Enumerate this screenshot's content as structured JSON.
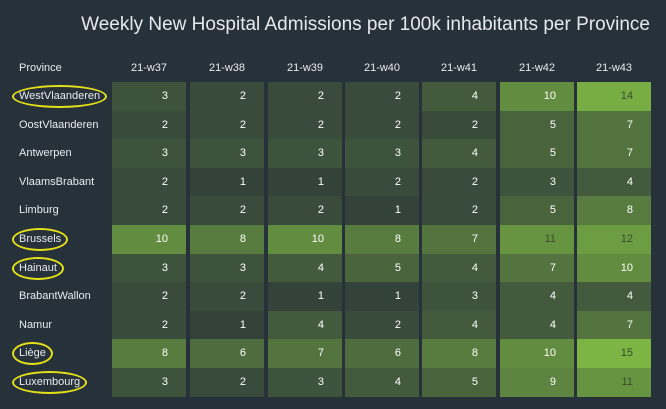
{
  "chart_data": {
    "type": "heatmap",
    "title": "Weekly New Hospital Admissions per 100k inhabitants per Province",
    "row_header": "Province",
    "columns": [
      "21-w37",
      "21-w38",
      "21-w39",
      "21-w40",
      "21-w41",
      "21-w42",
      "21-w43"
    ],
    "rows": [
      {
        "name": "WestVlaanderen",
        "highlighted": true,
        "values": [
          3,
          2,
          2,
          2,
          4,
          10,
          14
        ]
      },
      {
        "name": "OostVlaanderen",
        "highlighted": false,
        "values": [
          2,
          2,
          2,
          2,
          2,
          5,
          7
        ]
      },
      {
        "name": "Antwerpen",
        "highlighted": false,
        "values": [
          3,
          3,
          3,
          3,
          4,
          5,
          7
        ]
      },
      {
        "name": "VlaamsBrabant",
        "highlighted": false,
        "values": [
          2,
          1,
          1,
          2,
          2,
          3,
          4
        ]
      },
      {
        "name": "Limburg",
        "highlighted": false,
        "values": [
          2,
          2,
          2,
          1,
          2,
          5,
          8
        ]
      },
      {
        "name": "Brussels",
        "highlighted": true,
        "values": [
          10,
          8,
          10,
          8,
          7,
          11,
          12
        ]
      },
      {
        "name": "Hainaut",
        "highlighted": true,
        "values": [
          3,
          3,
          4,
          5,
          4,
          7,
          10
        ]
      },
      {
        "name": "BrabantWallon",
        "highlighted": false,
        "values": [
          2,
          2,
          1,
          1,
          3,
          4,
          4
        ]
      },
      {
        "name": "Namur",
        "highlighted": false,
        "values": [
          2,
          1,
          4,
          2,
          4,
          4,
          7
        ]
      },
      {
        "name": "Liège",
        "highlighted": true,
        "values": [
          8,
          6,
          7,
          6,
          8,
          10,
          15
        ]
      },
      {
        "name": "Luxembourg",
        "highlighted": true,
        "values": [
          3,
          2,
          3,
          4,
          5,
          9,
          11
        ]
      }
    ],
    "color_range": [
      1,
      15
    ],
    "colors": {
      "low": "#34433a",
      "high": "#7cb544",
      "background": "#27313a",
      "highlight": "#e3e01a"
    }
  }
}
